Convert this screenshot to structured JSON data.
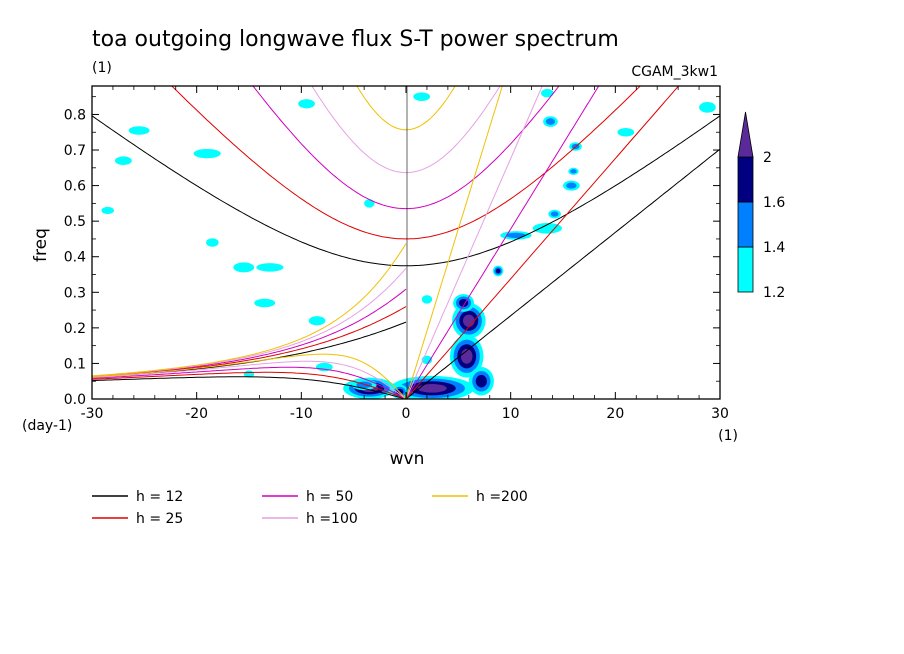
{
  "figure": {
    "title": "toa outgoing longwave flux S-T power spectrum",
    "units_label": "(1)",
    "run_label": "CGAM_3kw1",
    "x_unit_label": "(1)",
    "y_unit_label": "(day-1)"
  },
  "chart_data": {
    "type": "contour",
    "title": "toa outgoing longwave flux S-T power spectrum",
    "xlabel": "wvn",
    "ylabel": "freq",
    "xlim": [
      -30,
      30
    ],
    "ylim": [
      0,
      0.88
    ],
    "xticks": [
      -30,
      -20,
      -10,
      0,
      10,
      20,
      30
    ],
    "xtick_labels": [
      "-30",
      "-20",
      "-10",
      "0",
      "10",
      "20",
      "30"
    ],
    "yticks": [
      0,
      0.1,
      0.2,
      0.3,
      0.4,
      0.5,
      0.6,
      0.7,
      0.8
    ],
    "ytick_labels": [
      "0.0",
      "0.1",
      "0.2",
      "0.3",
      "0.4",
      "0.5",
      "0.6",
      "0.7",
      "0.8"
    ],
    "colorbar": {
      "levels": [
        1.2,
        1.4,
        1.6,
        2
      ],
      "labels": [
        "1.2",
        "1.4",
        "1.6",
        "2"
      ],
      "colors": [
        "#00ffff",
        "#0080ff",
        "#000080",
        "#5a2a9a"
      ]
    },
    "dispersion_curves": [
      {
        "name": "h = 12",
        "h": 12,
        "color": "#000000"
      },
      {
        "name": "h = 25",
        "h": 25,
        "color": "#e00000"
      },
      {
        "name": "h = 50",
        "h": 50,
        "color": "#d000c0"
      },
      {
        "name": "h =100",
        "h": 100,
        "color": "#e6a0e6"
      },
      {
        "name": "h =200",
        "h": 200,
        "color": "#f0c000"
      }
    ],
    "signal_blobs": [
      {
        "x": 2.5,
        "y": 0.03,
        "rx": 4.0,
        "ry": 0.035,
        "level": 2
      },
      {
        "x": -3.5,
        "y": 0.03,
        "rx": 2.5,
        "ry": 0.03,
        "level": 2
      },
      {
        "x": 5.8,
        "y": 0.12,
        "rx": 1.6,
        "ry": 0.06,
        "level": 2
      },
      {
        "x": 6.0,
        "y": 0.22,
        "rx": 1.6,
        "ry": 0.05,
        "level": 2
      },
      {
        "x": 5.5,
        "y": 0.27,
        "rx": 1.0,
        "ry": 0.025,
        "level": 1.6
      },
      {
        "x": 8.8,
        "y": 0.36,
        "rx": 0.5,
        "ry": 0.015,
        "level": 1.6
      },
      {
        "x": 7.2,
        "y": 0.05,
        "rx": 1.2,
        "ry": 0.04,
        "level": 1.6
      },
      {
        "x": -0.6,
        "y": 0.02,
        "rx": 0.8,
        "ry": 0.02,
        "level": 1.6
      },
      {
        "x": 10.5,
        "y": 0.46,
        "rx": 1.5,
        "ry": 0.012,
        "level": 1.4
      },
      {
        "x": 13.5,
        "y": 0.48,
        "rx": 1.4,
        "ry": 0.015,
        "level": 1.2
      },
      {
        "x": 14.2,
        "y": 0.52,
        "rx": 0.6,
        "ry": 0.012,
        "level": 1.4
      },
      {
        "x": 15.8,
        "y": 0.6,
        "rx": 0.8,
        "ry": 0.014,
        "level": 1.4
      },
      {
        "x": 16.0,
        "y": 0.64,
        "rx": 0.5,
        "ry": 0.01,
        "level": 1.4
      },
      {
        "x": 16.2,
        "y": 0.71,
        "rx": 0.6,
        "ry": 0.012,
        "level": 1.4
      },
      {
        "x": 13.8,
        "y": 0.78,
        "rx": 0.7,
        "ry": 0.015,
        "level": 1.4
      },
      {
        "x": 21.0,
        "y": 0.75,
        "rx": 0.8,
        "ry": 0.012,
        "level": 1.2
      },
      {
        "x": 28.8,
        "y": 0.82,
        "rx": 0.8,
        "ry": 0.015,
        "level": 1.2
      },
      {
        "x": -25.5,
        "y": 0.755,
        "rx": 1.0,
        "ry": 0.012,
        "level": 1.2
      },
      {
        "x": -27.0,
        "y": 0.67,
        "rx": 0.8,
        "ry": 0.012,
        "level": 1.2
      },
      {
        "x": -19.0,
        "y": 0.69,
        "rx": 1.3,
        "ry": 0.013,
        "level": 1.2
      },
      {
        "x": -18.5,
        "y": 0.44,
        "rx": 0.6,
        "ry": 0.012,
        "level": 1.2
      },
      {
        "x": -15.5,
        "y": 0.37,
        "rx": 1.0,
        "ry": 0.014,
        "level": 1.2
      },
      {
        "x": -13.0,
        "y": 0.37,
        "rx": 1.3,
        "ry": 0.012,
        "level": 1.2
      },
      {
        "x": -9.5,
        "y": 0.83,
        "rx": 0.8,
        "ry": 0.013,
        "level": 1.2
      },
      {
        "x": -13.5,
        "y": 0.27,
        "rx": 1.0,
        "ry": 0.012,
        "level": 1.2
      },
      {
        "x": -8.5,
        "y": 0.22,
        "rx": 0.8,
        "ry": 0.013,
        "level": 1.2
      },
      {
        "x": -7.8,
        "y": 0.09,
        "rx": 0.8,
        "ry": 0.012,
        "level": 1.2
      },
      {
        "x": -4.0,
        "y": 0.04,
        "rx": 1.2,
        "ry": 0.015,
        "level": 1.4
      },
      {
        "x": 2.0,
        "y": 0.11,
        "rx": 0.5,
        "ry": 0.012,
        "level": 1.2
      },
      {
        "x": 2.0,
        "y": 0.28,
        "rx": 0.5,
        "ry": 0.012,
        "level": 1.2
      },
      {
        "x": 1.5,
        "y": 0.85,
        "rx": 0.8,
        "ry": 0.012,
        "level": 1.2
      },
      {
        "x": 13.5,
        "y": 0.86,
        "rx": 0.6,
        "ry": 0.012,
        "level": 1.2
      },
      {
        "x": -15.0,
        "y": 0.07,
        "rx": 0.5,
        "ry": 0.01,
        "level": 1.2
      },
      {
        "x": -28.5,
        "y": 0.53,
        "rx": 0.6,
        "ry": 0.01,
        "level": 1.2
      },
      {
        "x": -3.5,
        "y": 0.55,
        "rx": 0.5,
        "ry": 0.012,
        "level": 1.2
      }
    ]
  }
}
